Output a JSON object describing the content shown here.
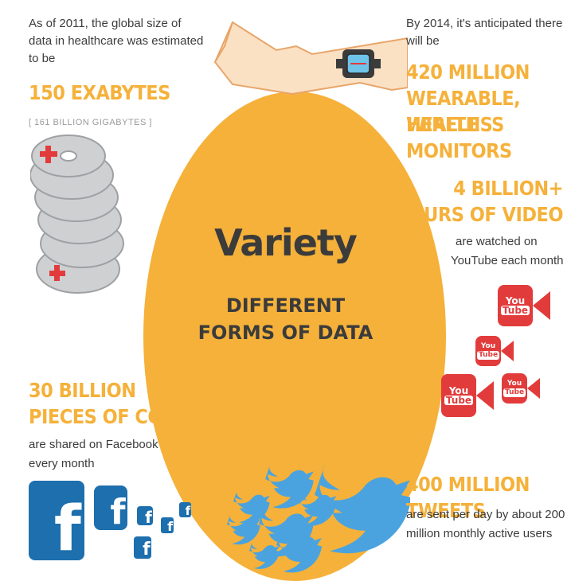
{
  "healthcare": {
    "intro": "As of 2011, the global size of data in healthcare was estimated to be",
    "stat": "150 EXABYTES",
    "bracket": "[ 161 BILLION GIGABYTES ]"
  },
  "wearables": {
    "intro": "By 2014, it's anticipated there will be",
    "stat_line1": "420 MILLION",
    "stat_line2": "WEARABLE, WIRELESS",
    "stat_line3": "HEALTH MONITORS"
  },
  "video": {
    "stat_line1": "4 BILLION+",
    "stat_line2": "HOURS OF VIDEO",
    "desc_line1": "are watched on",
    "desc_line2": "YouTube each month"
  },
  "center": {
    "title": "Variety",
    "sub_line1": "DIFFERENT",
    "sub_line2": "FORMS OF DATA"
  },
  "facebook": {
    "stat_line1": "30 BILLION",
    "stat_line2": "PIECES OF CONTENT",
    "desc_line1": "are shared on Facebook",
    "desc_line2": "every month",
    "icon_letter": "f"
  },
  "twitter": {
    "stat": "400 MILLION TWEETS",
    "desc_line1": "are sent per day by about 200",
    "desc_line2": "million monthly active users"
  },
  "youtube_icon": {
    "you": "You",
    "tube": "Tube"
  },
  "colors": {
    "accent": "#f5b13a",
    "text": "#3b3b3b",
    "facebook": "#1d6fae",
    "youtube": "#e23b3b",
    "twitter": "#4aa3df"
  }
}
